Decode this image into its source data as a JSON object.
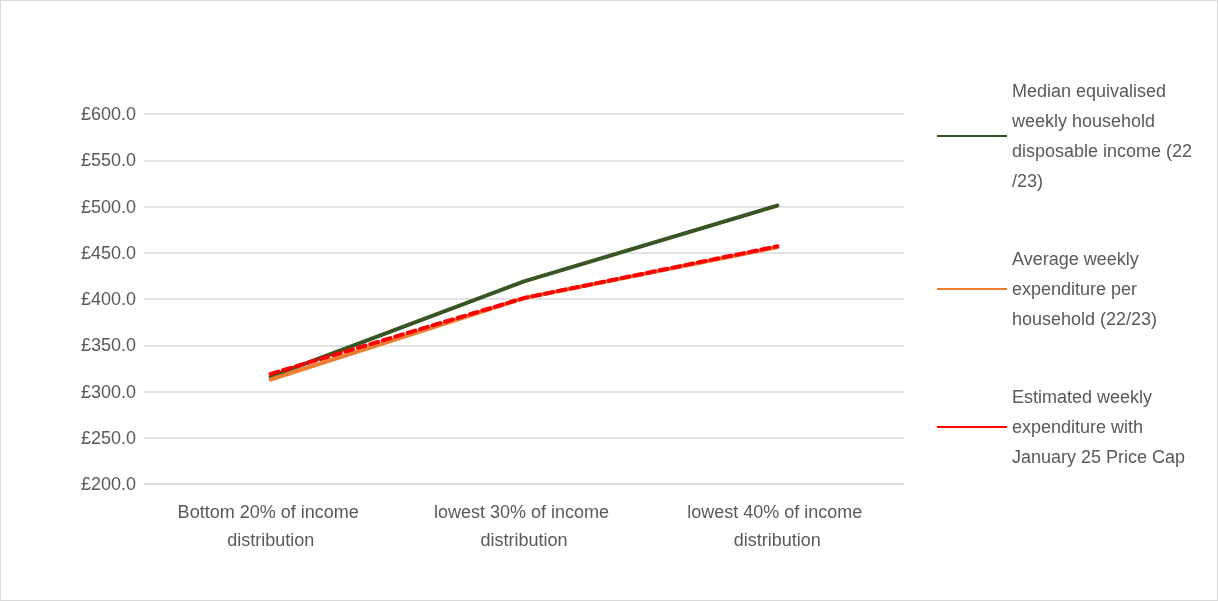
{
  "chart_data": {
    "type": "line",
    "categories": [
      "Bottom 20% of income distribution",
      "lowest 30% of income distribution",
      "lowest 40% of income distribution"
    ],
    "series": [
      {
        "name": "Median equivalised weekly household disposable income (22/23)",
        "color": "#375623",
        "values": [
          316,
          419,
          501
        ],
        "line_style": "solid"
      },
      {
        "name": "Average weekly expenditure per household (22/23)",
        "color": "#ed7d31",
        "values": [
          313,
          401,
          456
        ],
        "line_style": "solid"
      },
      {
        "name": "Estimated weekly expenditure with January 25 Price Cap",
        "color": "#ff0000",
        "values": [
          319,
          401,
          457
        ],
        "line_style": "dashed"
      }
    ],
    "ylim": [
      200,
      600
    ],
    "yticks": [
      {
        "value": 200,
        "label": "£200.0"
      },
      {
        "value": 250,
        "label": "£250.0"
      },
      {
        "value": 300,
        "label": "£300.0"
      },
      {
        "value": 350,
        "label": "£350.0"
      },
      {
        "value": 400,
        "label": "£400.0"
      },
      {
        "value": 450,
        "label": "£450.0"
      },
      {
        "value": 500,
        "label": "£500.0"
      },
      {
        "value": 550,
        "label": "£550.0"
      },
      {
        "value": 600,
        "label": "£600.0"
      }
    ],
    "grid": "y",
    "legend": "right",
    "marker": "none"
  }
}
